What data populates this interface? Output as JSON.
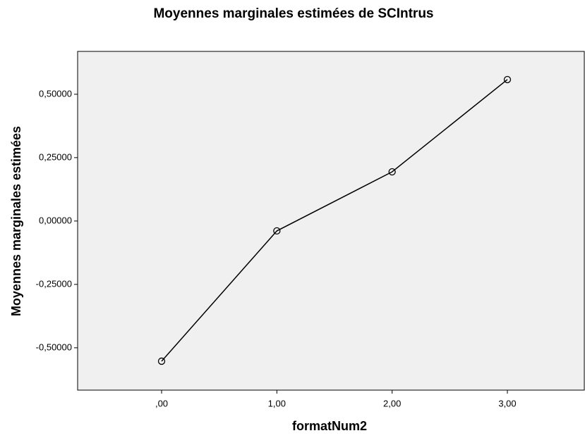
{
  "chart_data": {
    "type": "line",
    "title": "Moyennes marginales estimées de SCIntrus",
    "x_label": "formatNum2",
    "y_label": "Moyennes marginales estimées",
    "categories": [
      ",00",
      "1,00",
      "2,00",
      "3,00"
    ],
    "series": [
      {
        "name": "SCIntrus",
        "color": "#000000",
        "values": [
          -0.553,
          -0.039,
          0.194,
          0.558
        ]
      }
    ],
    "ylim": [
      -0.667,
      0.669
    ],
    "yticks": [
      {
        "value": -0.5,
        "label": "-0,50000"
      },
      {
        "value": -0.25,
        "label": "-0,25000"
      },
      {
        "value": 0,
        "label": "0,00000"
      },
      {
        "value": 0.25,
        "label": "0,25000"
      },
      {
        "value": 0.5,
        "label": "0,50000"
      }
    ],
    "plot_background": "#f0f0f0",
    "markers": true
  }
}
